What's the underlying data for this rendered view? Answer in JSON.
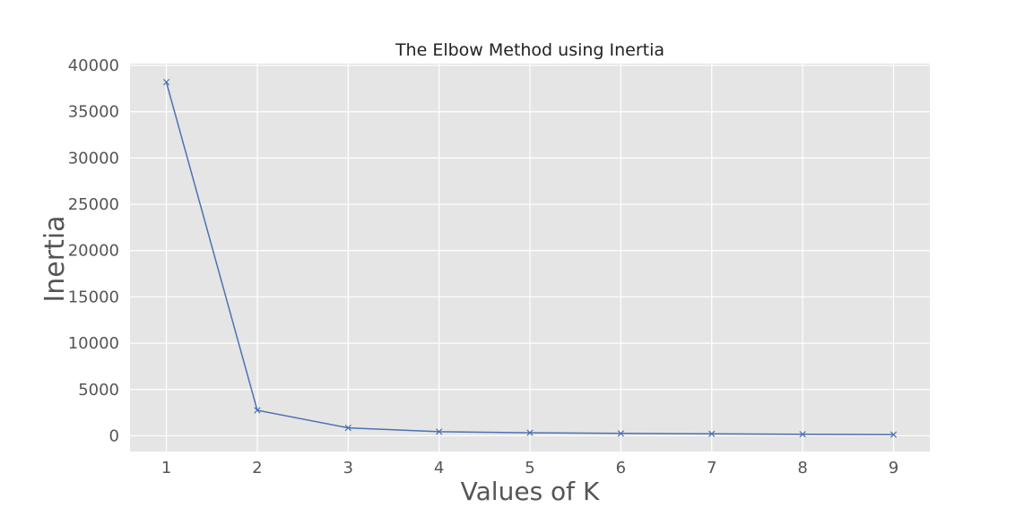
{
  "chart_data": {
    "type": "line",
    "title": "The Elbow Method using Inertia",
    "xlabel": "Values of K",
    "ylabel": "Inertia",
    "x": [
      1,
      2,
      3,
      4,
      5,
      6,
      7,
      8,
      9
    ],
    "series": [
      {
        "values": [
          38200,
          2750,
          850,
          440,
          320,
          250,
          210,
          160,
          130
        ],
        "color": "#4c72b0",
        "marker": "x"
      }
    ],
    "xticks": [
      "1",
      "2",
      "3",
      "4",
      "5",
      "6",
      "7",
      "8",
      "9"
    ],
    "yticks": [
      "0",
      "5000",
      "10000",
      "15000",
      "20000",
      "25000",
      "30000",
      "35000",
      "40000"
    ],
    "xlim": [
      0.6,
      9.4
    ],
    "ylim": [
      -1700,
      40200
    ],
    "grid": true,
    "background": "#e5e5e5",
    "grid_color": "#ffffff"
  }
}
